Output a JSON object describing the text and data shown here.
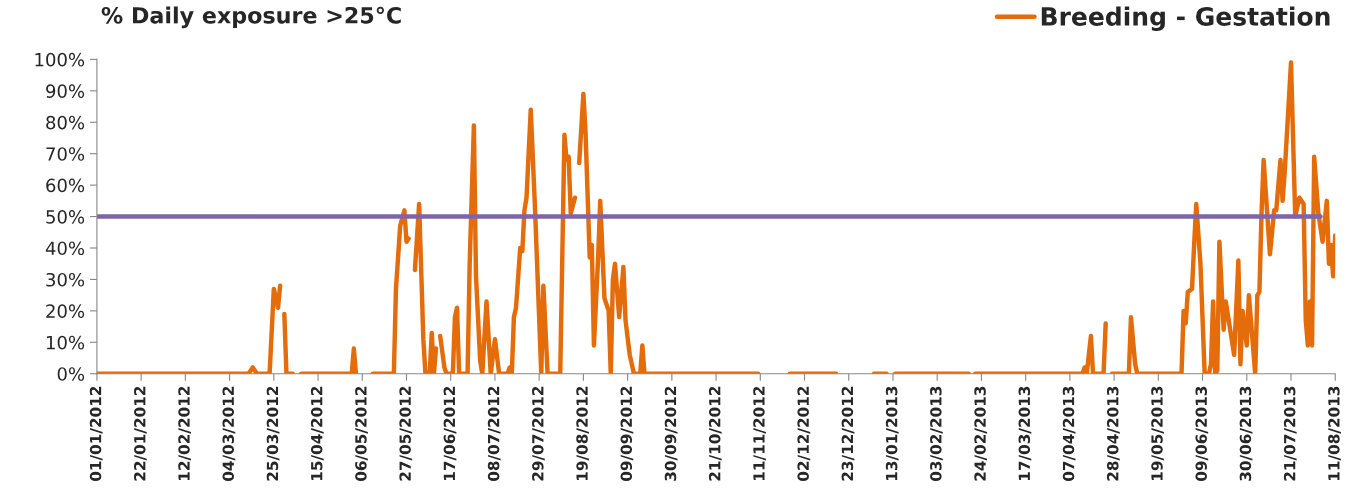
{
  "chart_data": {
    "type": "line",
    "title": "% Daily exposure >25°C",
    "x": [
      "2012-01-01",
      "2012-03-13",
      "2012-03-15",
      "2012-03-17",
      "2012-03-23",
      "2012-03-25",
      "2012-03-27",
      "2012-03-28",
      "2012-03-29",
      "2012-03-30",
      "2012-03-31",
      "2012-04-03",
      "2012-04-05",
      "2012-04-07",
      "2012-05-01",
      "2012-05-02",
      "2012-05-03",
      "2012-05-07",
      "2012-05-11",
      "2012-05-21",
      "2012-05-22",
      "2012-05-24",
      "2012-05-26",
      "2012-05-27",
      "2012-05-28",
      "2012-05-29",
      "2012-05-31",
      "2012-06-02",
      "2012-06-04",
      "2012-06-05",
      "2012-06-07",
      "2012-06-08",
      "2012-06-09",
      "2012-06-10",
      "2012-06-11",
      "2012-06-12",
      "2012-06-14",
      "2012-06-15",
      "2012-06-18",
      "2012-06-19",
      "2012-06-20",
      "2012-06-21",
      "2012-06-25",
      "2012-06-26",
      "2012-06-28",
      "2012-06-29",
      "2012-07-01",
      "2012-07-02",
      "2012-07-04",
      "2012-07-06",
      "2012-07-08",
      "2012-07-10",
      "2012-07-14",
      "2012-07-15",
      "2012-07-16",
      "2012-07-17",
      "2012-07-18",
      "2012-07-20",
      "2012-07-21",
      "2012-07-22",
      "2012-07-23",
      "2012-07-25",
      "2012-07-27",
      "2012-07-30",
      "2012-07-31",
      "2012-08-02",
      "2012-08-08",
      "2012-08-10",
      "2012-08-11",
      "2012-08-12",
      "2012-08-13",
      "2012-08-15",
      "2012-08-16",
      "2012-08-17",
      "2012-08-19",
      "2012-08-20",
      "2012-08-22",
      "2012-08-23",
      "2012-08-24",
      "2012-08-26",
      "2012-08-27",
      "2012-08-29",
      "2012-08-31",
      "2012-09-01",
      "2012-09-02",
      "2012-09-03",
      "2012-09-05",
      "2012-09-07",
      "2012-09-08",
      "2012-09-10",
      "2012-09-12",
      "2012-09-15",
      "2012-09-16",
      "2012-09-17",
      "2012-11-10",
      "2012-11-16",
      "2012-11-25",
      "2012-12-17",
      "2012-12-26",
      "2013-01-04",
      "2013-01-10",
      "2013-01-12",
      "2013-01-14",
      "2013-02-18",
      "2013-02-19",
      "2013-02-21",
      "2013-04-02",
      "2013-04-13",
      "2013-04-14",
      "2013-04-15",
      "2013-04-17",
      "2013-04-18",
      "2013-04-23",
      "2013-04-24",
      "2013-04-25",
      "2013-04-27",
      "2013-05-05",
      "2013-05-06",
      "2013-05-08",
      "2013-05-09",
      "2013-05-30",
      "2013-05-31",
      "2013-06-01",
      "2013-06-02",
      "2013-06-04",
      "2013-06-05",
      "2013-06-06",
      "2013-06-08",
      "2013-06-10",
      "2013-06-12",
      "2013-06-13",
      "2013-06-14",
      "2013-06-15",
      "2013-06-16",
      "2013-06-17",
      "2013-06-19",
      "2013-06-20",
      "2013-06-24",
      "2013-06-26",
      "2013-06-27",
      "2013-06-28",
      "2013-06-30",
      "2013-07-01",
      "2013-07-04",
      "2013-07-05",
      "2013-07-06",
      "2013-07-07",
      "2013-07-08",
      "2013-07-11",
      "2013-07-13",
      "2013-07-14",
      "2013-07-16",
      "2013-07-17",
      "2013-07-18",
      "2013-07-21",
      "2013-07-23",
      "2013-07-25",
      "2013-07-27",
      "2013-07-28",
      "2013-07-29",
      "2013-07-30",
      "2013-07-31",
      "2013-08-01",
      "2013-08-03",
      "2013-08-05",
      "2013-08-07",
      "2013-08-08",
      "2013-08-09",
      "2013-08-10",
      "2013-08-11"
    ],
    "series": [
      {
        "name": "Breeding - Gestation",
        "color": "#e46c0a",
        "values": [
          0,
          0,
          2,
          0,
          0,
          27,
          21,
          28,
          null,
          19,
          0,
          0,
          null,
          0,
          0,
          8,
          0,
          null,
          0,
          0,
          27,
          47,
          52,
          42,
          43,
          null,
          33,
          54,
          11,
          0,
          0,
          13,
          0,
          8,
          null,
          12,
          2,
          0,
          0,
          18,
          21,
          0,
          0,
          35,
          79,
          31,
          4,
          0,
          23,
          0,
          11,
          0,
          0,
          2,
          0,
          18,
          21,
          40,
          39,
          52,
          56,
          84,
          53,
          0,
          28,
          0,
          0,
          76,
          68,
          69,
          51,
          56,
          null,
          67,
          89,
          77,
          37,
          41,
          9,
          37,
          55,
          24,
          20,
          0,
          30,
          35,
          18,
          34,
          17,
          6,
          0,
          0,
          9,
          0,
          0,
          null,
          0,
          0,
          null,
          0,
          0,
          null,
          0,
          0,
          null,
          0,
          0,
          0,
          2,
          0,
          12,
          0,
          0,
          16,
          null,
          0,
          0,
          18,
          3,
          0,
          0,
          20,
          16,
          26,
          27,
          41,
          54,
          35,
          0,
          0,
          3,
          23,
          0,
          1,
          42,
          14,
          23,
          6,
          36,
          3,
          20,
          9,
          25,
          0,
          25,
          26,
          51,
          68,
          38,
          52,
          52,
          68,
          55,
          64,
          99,
          50,
          56,
          54,
          17,
          9,
          23,
          9,
          69,
          51,
          42,
          55,
          35,
          41,
          31,
          44
        ]
      },
      {
        "color": "#7f64a8",
        "x": [
          "2012-01-01",
          "2013-08-04"
        ],
        "values": [
          50,
          50
        ]
      }
    ],
    "xlim": [
      "2012-01-01",
      "2013-08-11"
    ],
    "xticks": [
      {
        "value": "2012-01-01",
        "label": "01/01/2012"
      },
      {
        "value": "2012-01-22",
        "label": "22/01/2012"
      },
      {
        "value": "2012-02-12",
        "label": "12/02/2012"
      },
      {
        "value": "2012-03-04",
        "label": "04/03/2012"
      },
      {
        "value": "2012-03-25",
        "label": "25/03/2012"
      },
      {
        "value": "2012-04-15",
        "label": "15/04/2012"
      },
      {
        "value": "2012-05-06",
        "label": "06/05/2012"
      },
      {
        "value": "2012-05-27",
        "label": "27/05/2012"
      },
      {
        "value": "2012-06-17",
        "label": "17/06/2012"
      },
      {
        "value": "2012-07-08",
        "label": "08/07/2012"
      },
      {
        "value": "2012-07-29",
        "label": "29/07/2012"
      },
      {
        "value": "2012-08-19",
        "label": "19/08/2012"
      },
      {
        "value": "2012-09-09",
        "label": "09/09/2012"
      },
      {
        "value": "2012-09-30",
        "label": "30/09/2012"
      },
      {
        "value": "2012-10-21",
        "label": "21/10/2012"
      },
      {
        "value": "2012-11-11",
        "label": "11/11/2012"
      },
      {
        "value": "2012-12-02",
        "label": "02/12/2012"
      },
      {
        "value": "2012-12-23",
        "label": "23/12/2012"
      },
      {
        "value": "2013-01-13",
        "label": "13/01/2013"
      },
      {
        "value": "2013-02-03",
        "label": "03/02/2013"
      },
      {
        "value": "2013-02-24",
        "label": "24/02/2013"
      },
      {
        "value": "2013-03-17",
        "label": "17/03/2013"
      },
      {
        "value": "2013-04-07",
        "label": "07/04/2013"
      },
      {
        "value": "2013-04-28",
        "label": "28/04/2013"
      },
      {
        "value": "2013-05-19",
        "label": "19/05/2013"
      },
      {
        "value": "2013-06-09",
        "label": "09/06/2013"
      },
      {
        "value": "2013-06-30",
        "label": "30/06/2013"
      },
      {
        "value": "2013-07-21",
        "label": "21/07/2013"
      },
      {
        "value": "2013-08-11",
        "label": "11/08/2013"
      }
    ],
    "ylim": [
      0,
      100
    ],
    "yticks": [
      {
        "value": 0,
        "label": "0%"
      },
      {
        "value": 10,
        "label": "10%"
      },
      {
        "value": 20,
        "label": "20%"
      },
      {
        "value": 30,
        "label": "30%"
      },
      {
        "value": 40,
        "label": "40%"
      },
      {
        "value": 50,
        "label": "50%"
      },
      {
        "value": 60,
        "label": "60%"
      },
      {
        "value": 70,
        "label": "70%"
      },
      {
        "value": 80,
        "label": "80%"
      },
      {
        "value": 90,
        "label": "90%"
      },
      {
        "value": 100,
        "label": "100%"
      }
    ],
    "grid": false,
    "legend": "top right",
    "marker": "none",
    "line_style": "solid"
  }
}
